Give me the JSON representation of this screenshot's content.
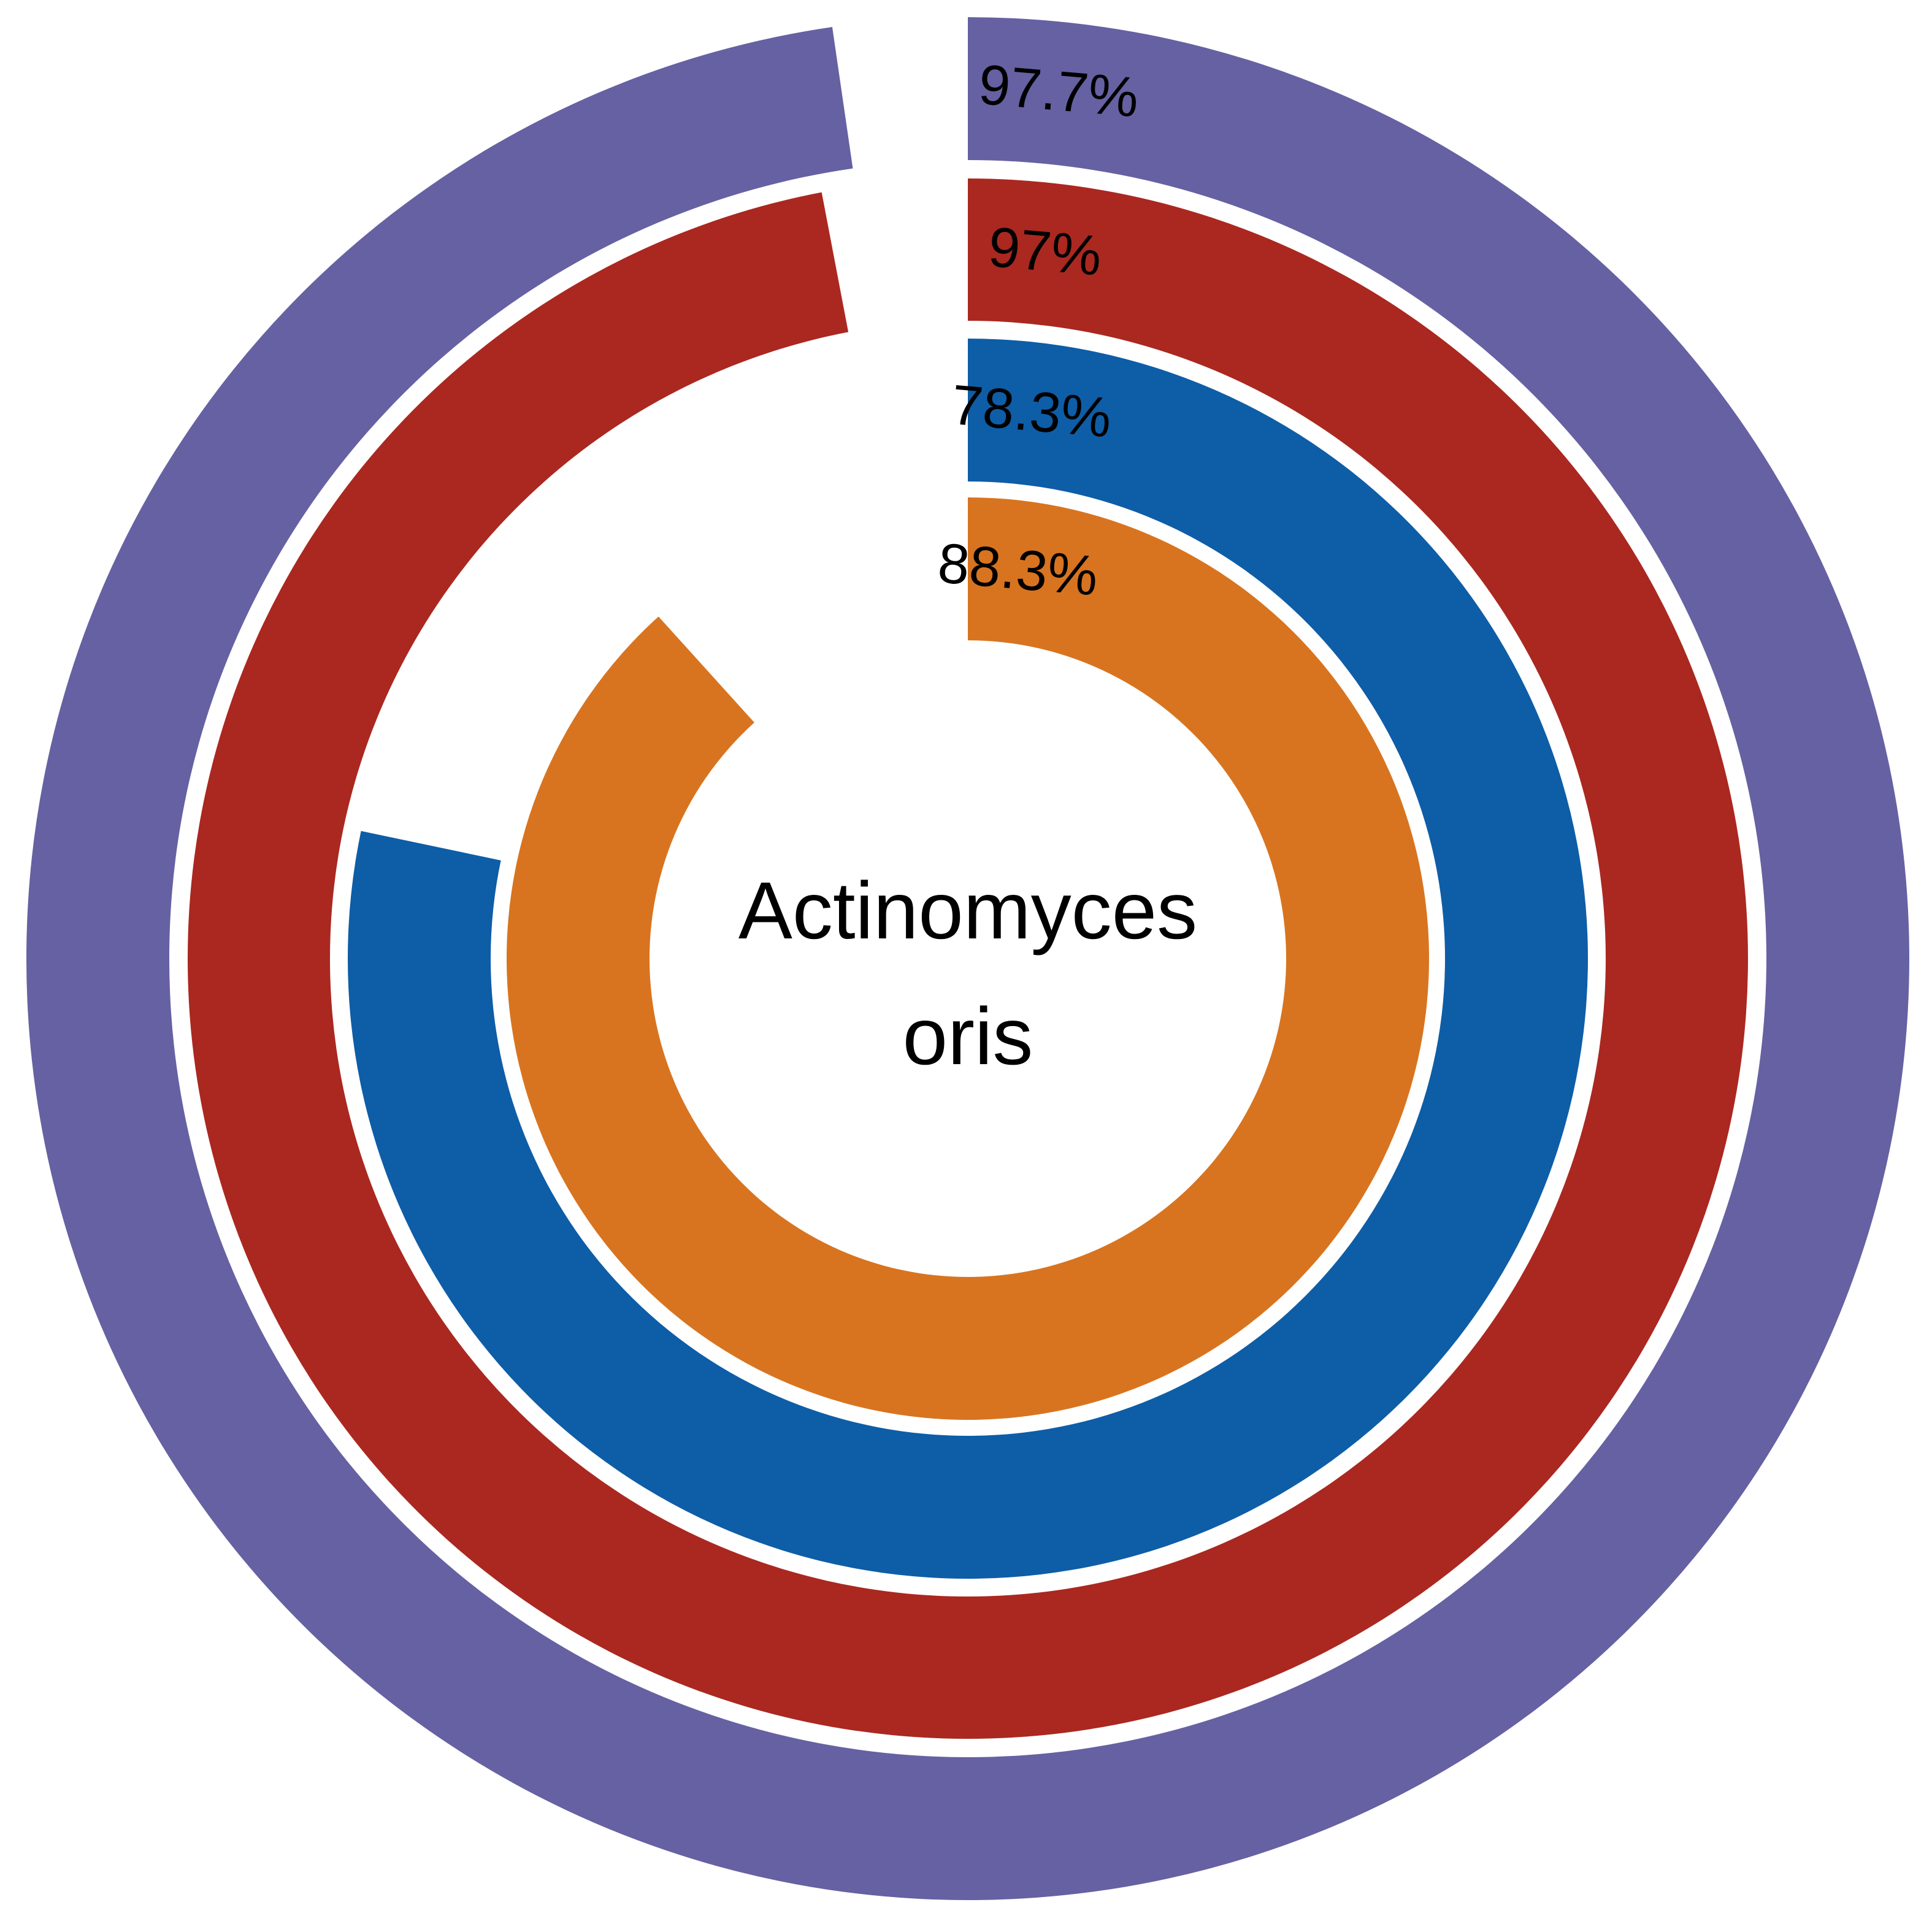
{
  "chart_data": {
    "type": "radial-bar",
    "center_label": [
      "Actinomyces",
      "oris"
    ],
    "max_value": 100,
    "start": "top",
    "direction": "clockwise",
    "series": [
      {
        "label": "97.7%",
        "value": 97.7,
        "color": "#6661a2"
      },
      {
        "label": "97%",
        "value": 97.0,
        "color": "#aa2820"
      },
      {
        "label": "78.3%",
        "value": 78.3,
        "color": "#0e5da7"
      },
      {
        "label": "88.3%",
        "value": 88.3,
        "color": "#d8741f"
      }
    ]
  }
}
